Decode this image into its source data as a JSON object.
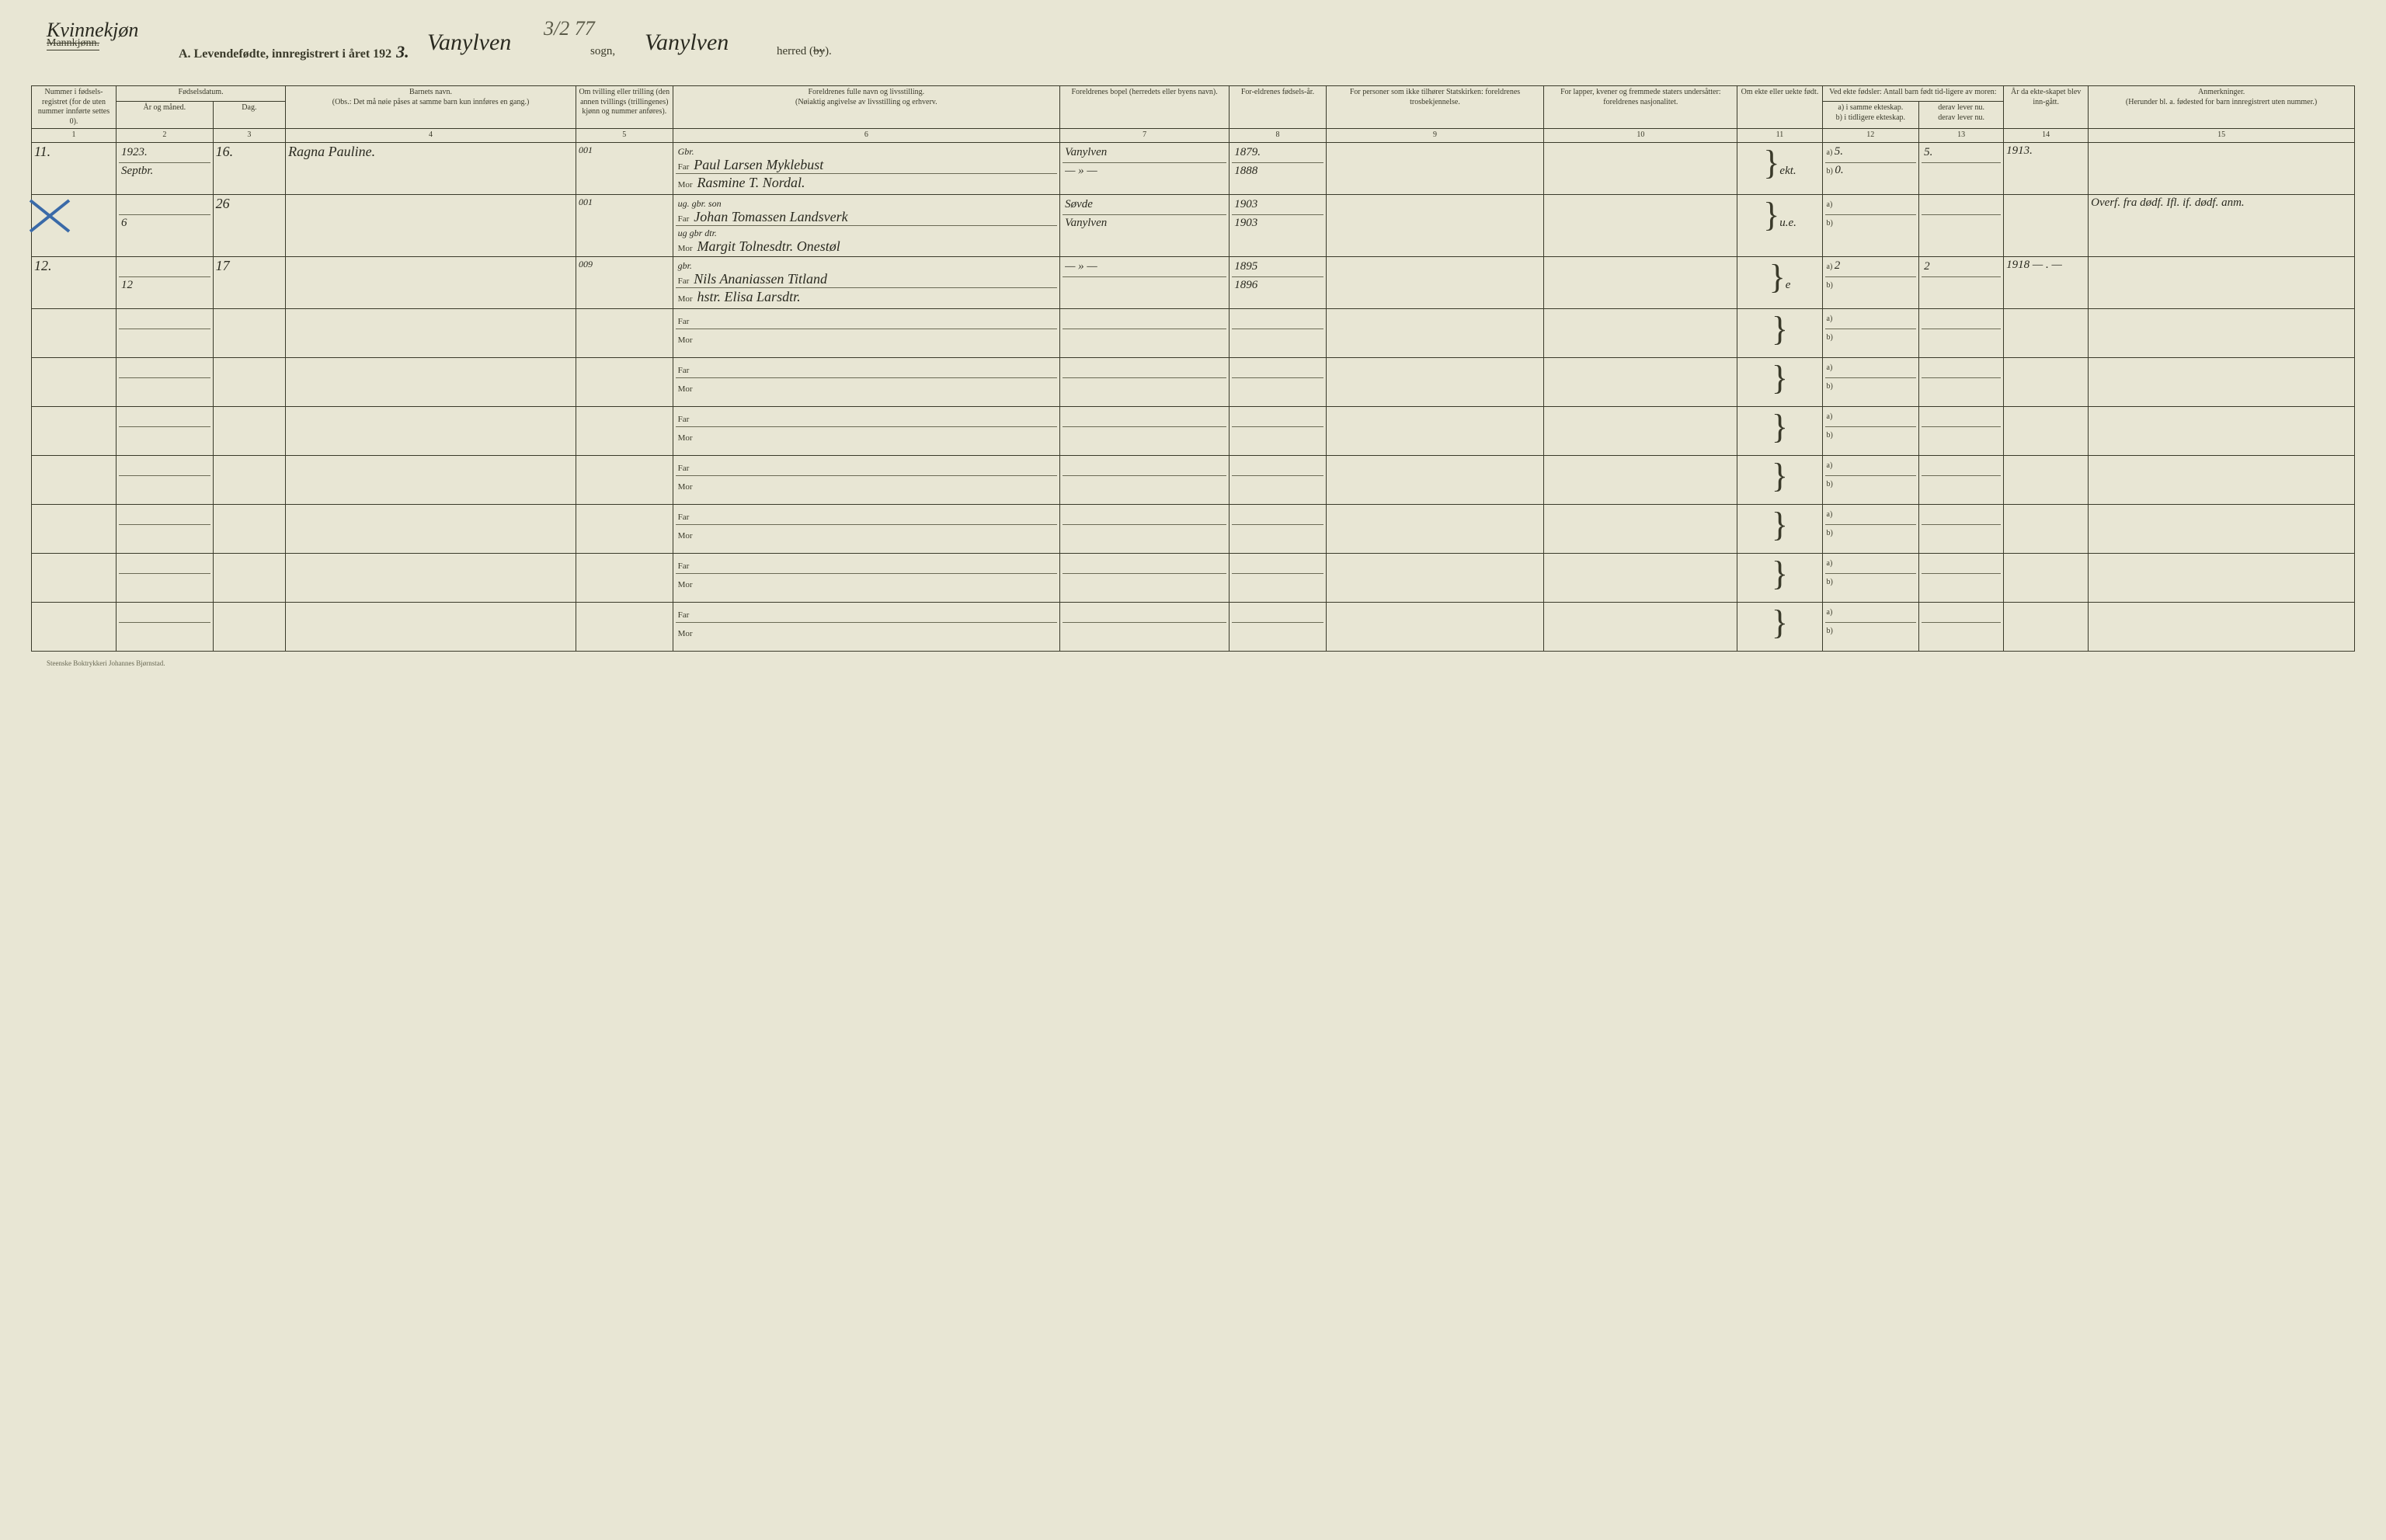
{
  "header": {
    "struck_label": "Mannkjønn.",
    "handwritten_gender": "Kvinnekjøn",
    "title_prefix": "A.  Levendefødte, innregistrert i året 192",
    "year_digit": "3.",
    "sogn_hw": "Vanylven",
    "sogn_label": "sogn,",
    "top_number": "3/2 77",
    "herred_hw": "Vanylven",
    "herred_label_a": "herred (",
    "herred_label_struck": "by",
    "herred_label_b": ")."
  },
  "columns": {
    "h1": "Nummer i fødsels-registret (for de uten nummer innførte settes 0).",
    "h2_top": "Fødselsdatum.",
    "h2a": "År og måned.",
    "h2b": "Dag.",
    "h4a": "Barnets navn.",
    "h4b": "(Obs.: Det må nøie påses at samme barn kun innføres en gang.)",
    "h5": "Om tvilling eller trilling (den annen tvillings (trillingenes) kjønn og nummer anføres).",
    "h6a": "Foreldrenes fulle navn og livsstilling.",
    "h6b": "(Nøiaktig angivelse av livsstilling og erhverv.",
    "h7": "Foreldrenes bopel (herredets eller byens navn).",
    "h8": "For-eldrenes fødsels-år.",
    "h9": "For personer som ikke tilhører Statskirken: foreldrenes trosbekjennelse.",
    "h10": "For lapper, kvener og fremmede staters undersåtter: foreldrenes nasjonalitet.",
    "h11": "Om ekte eller uekte født.",
    "h12_top": "Ved ekte fødsler: Antall barn født tid-ligere av moren:",
    "h12a": "a) i samme ekteskap.",
    "h12a2": "b) i tidligere ekteskap.",
    "h13a": "derav lever nu.",
    "h13b": "derav lever nu.",
    "h14": "År da ekte-skapet blev inn-gått.",
    "h15a": "Anmerkninger.",
    "h15b": "(Herunder bl. a. fødested for barn innregistrert uten nummer.)",
    "nums": [
      "1",
      "2",
      "3",
      "4",
      "5",
      "6",
      "7",
      "8",
      "9",
      "10",
      "11",
      "12",
      "13",
      "14",
      "15"
    ]
  },
  "rows": [
    {
      "num": "11.",
      "year_month_top": "1923.",
      "year_month": "Septbr.",
      "day": "16.",
      "child": "Ragna Pauline.",
      "twin_note": "001",
      "far_pre": "Gbr.",
      "far": "Paul Larsen Myklebust",
      "mor": "Rasmine T. Nordal.",
      "bopel_far": "Vanylven",
      "bopel_mor": "— » —",
      "faar_far": "1879.",
      "faar_mor": "1888",
      "ekte": "ekt.",
      "a_same": "5.",
      "a_prev": "0.",
      "lever": "5.",
      "ekteskap_aar": "1913.",
      "anm": ""
    },
    {
      "num": "",
      "crossed": true,
      "year_month": "6",
      "day": "26",
      "child": "",
      "twin_note": "001",
      "far_pre": "ug. gbr. son",
      "far": "Johan Tomassen Landsverk",
      "mor_pre": "ug gbr dtr.",
      "mor": "Margit Tolnesdtr. Onestøl",
      "bopel_far": "Søvde",
      "bopel_mor": "Vanylven",
      "faar_far": "1903",
      "faar_mor": "1903",
      "ekte": "u.e.",
      "a_same": "",
      "a_prev": "",
      "lever": "",
      "ekteskap_aar": "",
      "anm": "Overf. fra dødf. Ifl. if. dødf. anm."
    },
    {
      "num": "12.",
      "year_month": "12",
      "day": "17",
      "child": "",
      "twin_note": "009",
      "far_pre": "gbr.",
      "far": "Nils Ananiassen Titland",
      "mor": "hstr. Elisa Larsdtr.",
      "bopel_far": "— » —",
      "bopel_mor": "",
      "faar_far": "1895",
      "faar_mor": "1896",
      "ekte": "e",
      "a_same": "2",
      "a_prev": "",
      "lever": "2",
      "ekteskap_aar": "1918 — . —",
      "anm": ""
    }
  ],
  "labels": {
    "far": "Far",
    "mor": "Mor",
    "a": "a)",
    "b": "b)"
  },
  "footer": "Steenske Boktrykkeri Johannes Bjørnstad.",
  "colors": {
    "paper": "#e8e6d4",
    "ink": "#3a3a2a",
    "blue_pencil": "#3a6aa8"
  }
}
